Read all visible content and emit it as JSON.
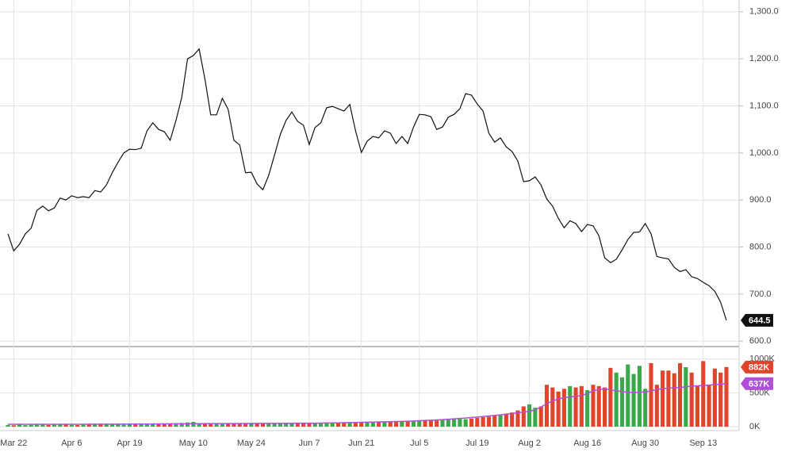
{
  "chart_data": [
    {
      "type": "line",
      "categories": [
        null,
        "Mar 22",
        null,
        null,
        null,
        null,
        null,
        null,
        null,
        null,
        null,
        "Apr 6",
        null,
        null,
        null,
        null,
        null,
        null,
        null,
        null,
        null,
        "Apr 19",
        null,
        null,
        null,
        null,
        null,
        null,
        null,
        null,
        null,
        null,
        "May 10",
        null,
        null,
        null,
        null,
        null,
        null,
        null,
        null,
        null,
        "May 24",
        null,
        null,
        null,
        null,
        null,
        null,
        null,
        null,
        null,
        "Jun 7",
        null,
        null,
        null,
        null,
        null,
        null,
        null,
        null,
        "Jun 21",
        null,
        null,
        null,
        null,
        null,
        null,
        null,
        null,
        null,
        "Jul 5",
        null,
        null,
        null,
        null,
        null,
        null,
        null,
        null,
        null,
        "Jul 19",
        null,
        null,
        null,
        null,
        null,
        null,
        null,
        null,
        "Aug 2",
        null,
        null,
        null,
        null,
        null,
        null,
        null,
        null,
        null,
        "Aug 16",
        null,
        null,
        null,
        null,
        null,
        null,
        null,
        null,
        null,
        "Aug 30",
        null,
        null,
        null,
        null,
        null,
        null,
        null,
        null,
        null,
        "Sep 13",
        null,
        null,
        null,
        null
      ],
      "values": [
        828,
        792,
        806,
        828,
        840,
        878,
        887,
        877,
        883,
        904,
        900,
        909,
        905,
        907,
        905,
        920,
        917,
        932,
        958,
        980,
        1000,
        1008,
        1007,
        1010,
        1047,
        1064,
        1050,
        1045,
        1027,
        1069,
        1118,
        1200,
        1207,
        1221,
        1157,
        1081,
        1081,
        1116,
        1093,
        1027,
        1017,
        958,
        959,
        934,
        922,
        952,
        995,
        1039,
        1069,
        1087,
        1067,
        1059,
        1018,
        1054,
        1064,
        1096,
        1099,
        1094,
        1089,
        1103,
        1047,
        1001,
        1025,
        1035,
        1032,
        1047,
        1042,
        1020,
        1035,
        1020,
        1055,
        1082,
        1081,
        1077,
        1050,
        1055,
        1076,
        1082,
        1094,
        1126,
        1123,
        1104,
        1089,
        1042,
        1023,
        1032,
        1013,
        1003,
        983,
        939,
        941,
        949,
        932,
        902,
        887,
        861,
        841,
        856,
        850,
        833,
        848,
        845,
        824,
        777,
        767,
        774,
        794,
        816,
        831,
        832,
        850,
        828,
        780,
        777,
        775,
        757,
        748,
        752,
        737,
        733,
        725,
        718,
        706,
        683,
        644.5
      ],
      "color": "#111111",
      "ylim": [
        597,
        1325
      ],
      "yticks": [
        {
          "value": 600,
          "label": "600.0"
        },
        {
          "value": 700,
          "label": "700.0"
        },
        {
          "value": 800,
          "label": "800.0"
        },
        {
          "value": 900,
          "label": "900.0"
        },
        {
          "value": 1000,
          "label": "1,000.0"
        },
        {
          "value": 1100,
          "label": "1,100.0"
        },
        {
          "value": 1200,
          "label": "1,200.0"
        },
        {
          "value": 1300,
          "label": "1,300.0"
        }
      ],
      "grid": true
    },
    {
      "type": "bar",
      "values": [
        25,
        20,
        30,
        22,
        28,
        35,
        30,
        25,
        28,
        32,
        30,
        26,
        24,
        30,
        28,
        35,
        30,
        32,
        38,
        30,
        28,
        30,
        35,
        40,
        38,
        45,
        42,
        40,
        48,
        50,
        55,
        62,
        70,
        50,
        45,
        40,
        48,
        42,
        45,
        50,
        52,
        48,
        55,
        50,
        45,
        48,
        52,
        55,
        50,
        48,
        55,
        58,
        52,
        50,
        55,
        60,
        58,
        55,
        62,
        60,
        65,
        70,
        68,
        72,
        75,
        70,
        78,
        80,
        75,
        82,
        85,
        90,
        95,
        88,
        92,
        100,
        105,
        110,
        115,
        110,
        120,
        130,
        140,
        150,
        160,
        175,
        190,
        210,
        240,
        300,
        330,
        280,
        300,
        620,
        580,
        520,
        560,
        600,
        580,
        600,
        540,
        620,
        600,
        580,
        870,
        800,
        730,
        920,
        780,
        900,
        560,
        940,
        620,
        830,
        830,
        790,
        940,
        880,
        800,
        600,
        970,
        620,
        860,
        800,
        882
      ],
      "value_labels": [
        null,
        null,
        null,
        null,
        null,
        null,
        null,
        null,
        null,
        null,
        null,
        null,
        null,
        null,
        null,
        null,
        null,
        null,
        null,
        null,
        null,
        null,
        null,
        null,
        null,
        null,
        null,
        null,
        null,
        null,
        null,
        null,
        null,
        null,
        null,
        null,
        null,
        null,
        null,
        null,
        null,
        null,
        null,
        null,
        null,
        null,
        null,
        null,
        null,
        null,
        null,
        null,
        null,
        null,
        null,
        null,
        null,
        null,
        null,
        null,
        null,
        null,
        null,
        null,
        null,
        null,
        null,
        null,
        null,
        null,
        null,
        null,
        null,
        null,
        null,
        null,
        null,
        null,
        null,
        null,
        null,
        null,
        null,
        null,
        null,
        null,
        null,
        null,
        null,
        null,
        null,
        null,
        null,
        null,
        null,
        null,
        null,
        null,
        null,
        null,
        null,
        null,
        null,
        null,
        null,
        null,
        null,
        null,
        null,
        null,
        null,
        null,
        null,
        null,
        null,
        null,
        null,
        null,
        null,
        null,
        null,
        null,
        null,
        null,
        "882K"
      ],
      "up_color": "#3ba84a",
      "down_color": "#e0452c",
      "ylim": [
        0,
        1150
      ],
      "yticks": [
        {
          "value": 0,
          "label": "0K"
        },
        {
          "value": 500,
          "label": "500K"
        },
        {
          "value": 1000,
          "label": "1000K"
        }
      ],
      "grid": true,
      "average": {
        "color": "#b14fd8",
        "values": [
          35,
          35,
          35,
          35,
          35,
          35,
          35,
          35,
          35,
          35,
          35,
          35,
          35,
          35,
          36,
          36,
          36,
          36,
          37,
          37,
          38,
          38,
          39,
          39,
          40,
          40,
          41,
          41,
          42,
          42,
          43,
          43,
          44,
          44,
          45,
          45,
          45,
          46,
          46,
          46,
          47,
          47,
          47,
          48,
          48,
          48,
          49,
          49,
          50,
          50,
          51,
          51,
          52,
          52,
          53,
          54,
          55,
          56,
          58,
          60,
          62,
          64,
          66,
          68,
          70,
          72,
          74,
          76,
          78,
          80,
          84,
          88,
          92,
          96,
          100,
          104,
          110,
          116,
          122,
          128,
          135,
          142,
          150,
          158,
          166,
          175,
          185,
          195,
          205,
          215,
          230,
          250,
          290,
          340,
          380,
          410,
          430,
          440,
          450,
          460,
          490,
          530,
          550,
          560,
          545,
          530,
          520,
          510,
          505,
          510,
          515,
          530,
          550,
          560,
          570,
          575,
          580,
          590,
          600,
          605,
          610,
          615,
          620,
          628,
          637
        ],
        "value_labels": [
          null,
          null,
          null,
          null,
          null,
          null,
          null,
          null,
          null,
          null,
          null,
          null,
          null,
          null,
          null,
          null,
          null,
          null,
          null,
          null,
          null,
          null,
          null,
          null,
          null,
          null,
          null,
          null,
          null,
          null,
          null,
          null,
          null,
          null,
          null,
          null,
          null,
          null,
          null,
          null,
          null,
          null,
          null,
          null,
          null,
          null,
          null,
          null,
          null,
          null,
          null,
          null,
          null,
          null,
          null,
          null,
          null,
          null,
          null,
          null,
          null,
          null,
          null,
          null,
          null,
          null,
          null,
          null,
          null,
          null,
          null,
          null,
          null,
          null,
          null,
          null,
          null,
          null,
          null,
          null,
          null,
          null,
          null,
          null,
          null,
          null,
          null,
          null,
          null,
          null,
          null,
          null,
          null,
          null,
          null,
          null,
          null,
          null,
          null,
          null,
          null,
          null,
          null,
          null,
          null,
          null,
          null,
          null,
          null,
          null,
          null,
          null,
          null,
          null,
          null,
          null,
          null,
          null,
          null,
          null,
          null,
          null,
          null,
          null,
          "637K"
        ]
      }
    }
  ]
}
